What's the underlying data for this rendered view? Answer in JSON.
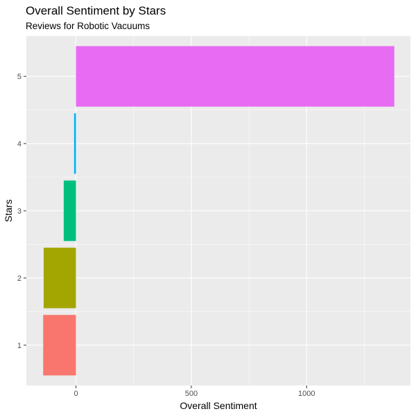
{
  "chart_data": {
    "type": "bar",
    "orientation": "horizontal",
    "title": "Overall Sentiment by Stars",
    "subtitle": "Reviews for Robotic Vacuums",
    "xlabel": "Overall Sentiment",
    "ylabel": "Stars",
    "categories": [
      "1",
      "2",
      "3",
      "4",
      "5"
    ],
    "values": [
      -142,
      -140,
      -53,
      -8,
      1380
    ],
    "colors": [
      "#F8766D",
      "#A3A500",
      "#00BF7D",
      "#00B0F6",
      "#E76BF3"
    ],
    "x_ticks": [
      0,
      500,
      1000
    ],
    "x_tick_labels": [
      "0",
      "500",
      "1000"
    ],
    "xlim": [
      -215,
      1450
    ],
    "grid": true,
    "legend": "none",
    "panel_color": "#EBEBEB"
  }
}
